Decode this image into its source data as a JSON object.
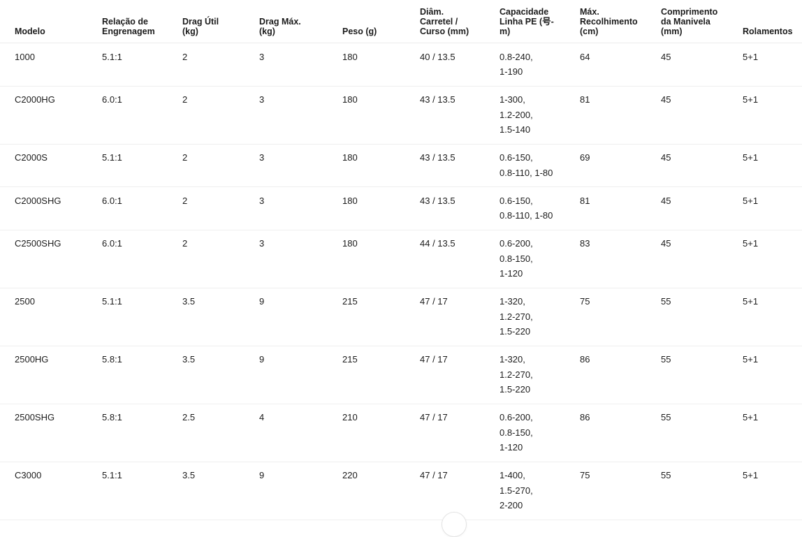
{
  "page": {
    "background_color": "#ffffff",
    "text_color": "#1b1b1b",
    "row_border_color": "#efefef",
    "header_border_color": "#ebebeb"
  },
  "icons": {
    "bottom_button": "partial-circle-arc"
  },
  "table": {
    "columns": [
      {
        "id": "modelo",
        "lines": [
          "Modelo"
        ]
      },
      {
        "id": "relacao",
        "lines": [
          "Relação de",
          "Engrenagem"
        ]
      },
      {
        "id": "drag-util",
        "lines": [
          "Drag Útil",
          "(kg)"
        ]
      },
      {
        "id": "drag-max",
        "lines": [
          "Drag Máx.",
          "(kg)"
        ]
      },
      {
        "id": "peso",
        "lines": [
          "Peso (g)"
        ]
      },
      {
        "id": "diam-carretel",
        "lines": [
          "Diâm.",
          "Carretel /",
          "Curso (mm)"
        ]
      },
      {
        "id": "capacidade",
        "lines": [
          "Capacidade",
          "Linha PE (号-",
          "m)"
        ]
      },
      {
        "id": "recolhimento",
        "lines": [
          "Máx.",
          "Recolhimento",
          "(cm)"
        ]
      },
      {
        "id": "manivela",
        "lines": [
          "Comprimento",
          "da Manivela",
          "(mm)"
        ]
      },
      {
        "id": "rolamentos",
        "lines": [
          "Rolamentos"
        ]
      }
    ],
    "rows": [
      [
        "1000",
        "5.1:1",
        "2",
        "3",
        "180",
        "40 / 13.5",
        [
          "0.8-240,",
          "1-190"
        ],
        "64",
        "45",
        "5+1"
      ],
      [
        "C2000HG",
        "6.0:1",
        "2",
        "3",
        "180",
        "43 / 13.5",
        [
          "1-300,",
          "1.2-200,",
          "1.5-140"
        ],
        "81",
        "45",
        "5+1"
      ],
      [
        "C2000S",
        "5.1:1",
        "2",
        "3",
        "180",
        "43 / 13.5",
        [
          "0.6-150,",
          "0.8-110, 1-80"
        ],
        "69",
        "45",
        "5+1"
      ],
      [
        "C2000SHG",
        "6.0:1",
        "2",
        "3",
        "180",
        "43 / 13.5",
        [
          "0.6-150,",
          "0.8-110, 1-80"
        ],
        "81",
        "45",
        "5+1"
      ],
      [
        "C2500SHG",
        "6.0:1",
        "2",
        "3",
        "180",
        "44 / 13.5",
        [
          "0.6-200,",
          "0.8-150,",
          "1-120"
        ],
        "83",
        "45",
        "5+1"
      ],
      [
        "2500",
        "5.1:1",
        "3.5",
        "9",
        "215",
        "47 / 17",
        [
          "1-320,",
          "1.2-270,",
          "1.5-220"
        ],
        "75",
        "55",
        "5+1"
      ],
      [
        "2500HG",
        "5.8:1",
        "3.5",
        "9",
        "215",
        "47 / 17",
        [
          "1-320,",
          "1.2-270,",
          "1.5-220"
        ],
        "86",
        "55",
        "5+1"
      ],
      [
        "2500SHG",
        "5.8:1",
        "2.5",
        "4",
        "210",
        "47 / 17",
        [
          "0.6-200,",
          "0.8-150,",
          "1-120"
        ],
        "86",
        "55",
        "5+1"
      ],
      [
        "C3000",
        "5.1:1",
        "3.5",
        "9",
        "220",
        "47 / 17",
        [
          "1-400,",
          "1.5-270,",
          "2-200"
        ],
        "75",
        "55",
        "5+1"
      ]
    ]
  }
}
